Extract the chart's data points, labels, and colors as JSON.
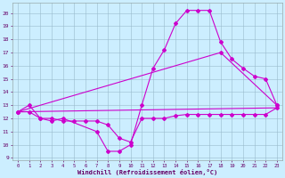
{
  "xlabel": "Windchill (Refroidissement éolien,°C)",
  "background_color": "#cceeff",
  "line_color": "#cc00cc",
  "xlim": [
    -0.5,
    23.5
  ],
  "ylim": [
    8.8,
    20.8
  ],
  "yticks": [
    9,
    10,
    11,
    12,
    13,
    14,
    15,
    16,
    17,
    18,
    19,
    20
  ],
  "xticks": [
    0,
    1,
    2,
    3,
    4,
    5,
    6,
    7,
    8,
    9,
    10,
    11,
    12,
    13,
    14,
    15,
    16,
    17,
    18,
    19,
    20,
    21,
    22,
    23
  ],
  "series1_x": [
    0,
    1,
    2,
    3,
    4,
    7,
    8,
    9,
    10,
    11,
    12,
    13,
    14,
    15,
    16,
    17,
    18,
    19,
    20,
    21,
    22,
    23
  ],
  "series1_y": [
    12.5,
    13.0,
    12.0,
    11.8,
    12.0,
    11.0,
    9.5,
    9.5,
    10.0,
    13.0,
    15.8,
    17.2,
    19.2,
    20.2,
    20.2,
    20.2,
    17.8,
    16.5,
    15.8,
    15.2,
    15.0,
    13.0
  ],
  "series2_x": [
    0,
    1,
    2,
    3,
    4,
    5,
    6,
    7,
    8,
    9,
    10,
    11,
    12,
    13,
    14,
    15,
    16,
    17,
    18,
    19,
    20,
    21,
    22,
    23
  ],
  "series2_y": [
    12.5,
    12.5,
    12.0,
    12.0,
    11.8,
    11.8,
    11.8,
    11.8,
    11.5,
    10.5,
    10.2,
    12.0,
    12.0,
    12.0,
    12.2,
    12.3,
    12.3,
    12.3,
    12.3,
    12.3,
    12.3,
    12.3,
    12.3,
    12.8
  ],
  "series3_x": [
    0,
    18,
    23
  ],
  "series3_y": [
    12.5,
    17.0,
    13.0
  ],
  "series4_x": [
    0,
    23
  ],
  "series4_y": [
    12.5,
    12.8
  ]
}
